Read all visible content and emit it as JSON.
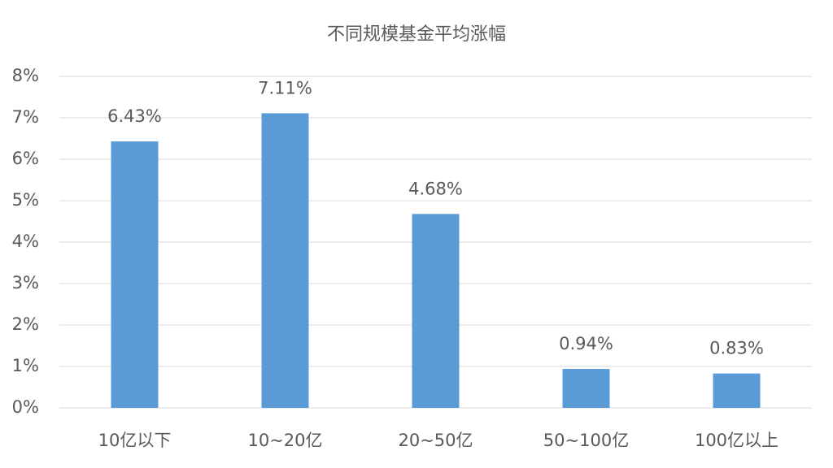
{
  "chart_data": {
    "type": "bar",
    "title": "不同规模基金平均涨幅",
    "categories": [
      "10亿以下",
      "10~20亿",
      "20~50亿",
      "50~100亿",
      "100亿以上"
    ],
    "values": [
      6.43,
      7.11,
      4.68,
      0.94,
      0.83
    ],
    "value_labels": [
      "6.43%",
      "7.11%",
      "4.68%",
      "0.94%",
      "0.83%"
    ],
    "color": "#5b9bd5",
    "ylim": [
      0,
      8
    ],
    "yticks": [
      {
        "value": 0,
        "label": "0%"
      },
      {
        "value": 1,
        "label": "1%"
      },
      {
        "value": 2,
        "label": "2%"
      },
      {
        "value": 3,
        "label": "3%"
      },
      {
        "value": 4,
        "label": "4%"
      },
      {
        "value": 5,
        "label": "5%"
      },
      {
        "value": 6,
        "label": "6%"
      },
      {
        "value": 7,
        "label": "7%"
      },
      {
        "value": 8,
        "label": "8%"
      }
    ],
    "grid": true
  }
}
